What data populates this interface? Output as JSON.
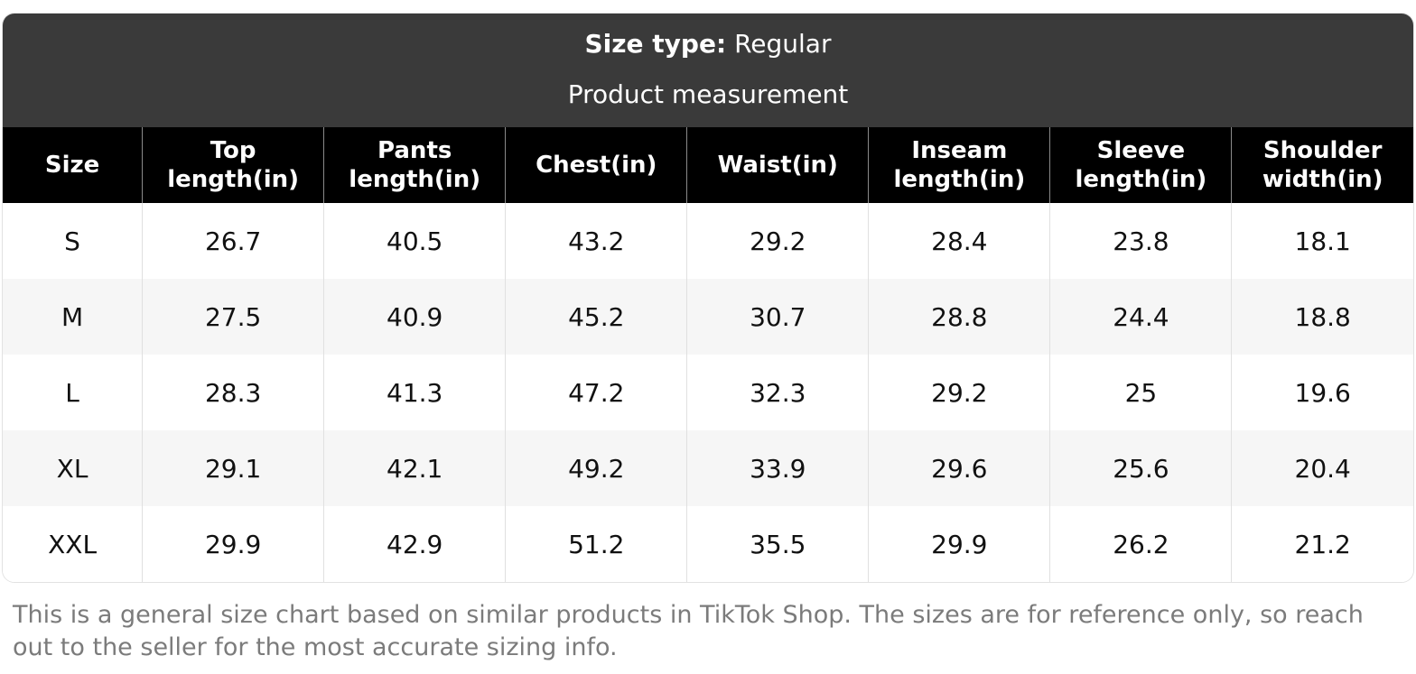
{
  "band": {
    "size_type_label": "Size type:",
    "size_type_value": "Regular",
    "subtitle": "Product measurement"
  },
  "chart_data": {
    "type": "table",
    "title": "Product measurement",
    "columns": [
      "Size",
      "Top length(in)",
      "Pants length(in)",
      "Chest(in)",
      "Waist(in)",
      "Inseam length(in)",
      "Sleeve length(in)",
      "Shoulder width(in)"
    ],
    "rows": [
      [
        "S",
        "26.7",
        "40.5",
        "43.2",
        "29.2",
        "28.4",
        "23.8",
        "18.1"
      ],
      [
        "M",
        "27.5",
        "40.9",
        "45.2",
        "30.7",
        "28.8",
        "24.4",
        "18.8"
      ],
      [
        "L",
        "28.3",
        "41.3",
        "47.2",
        "32.3",
        "29.2",
        "25",
        "19.6"
      ],
      [
        "XL",
        "29.1",
        "42.1",
        "49.2",
        "33.9",
        "29.6",
        "25.6",
        "20.4"
      ],
      [
        "XXL",
        "29.9",
        "42.9",
        "51.2",
        "35.5",
        "29.9",
        "26.2",
        "21.2"
      ]
    ]
  },
  "disclaimer": "This is a general size chart based on similar products in TikTok Shop. The sizes are for reference only, so reach out to the seller for the most accurate sizing info.",
  "colors": {
    "band_bg": "#3a3a3a",
    "header_bg": "#000000",
    "stripe_bg": "#f6f6f6",
    "header_divider": "#8a8a8a",
    "body_divider": "#e0e0e0",
    "note_text": "#7b7b7b"
  }
}
